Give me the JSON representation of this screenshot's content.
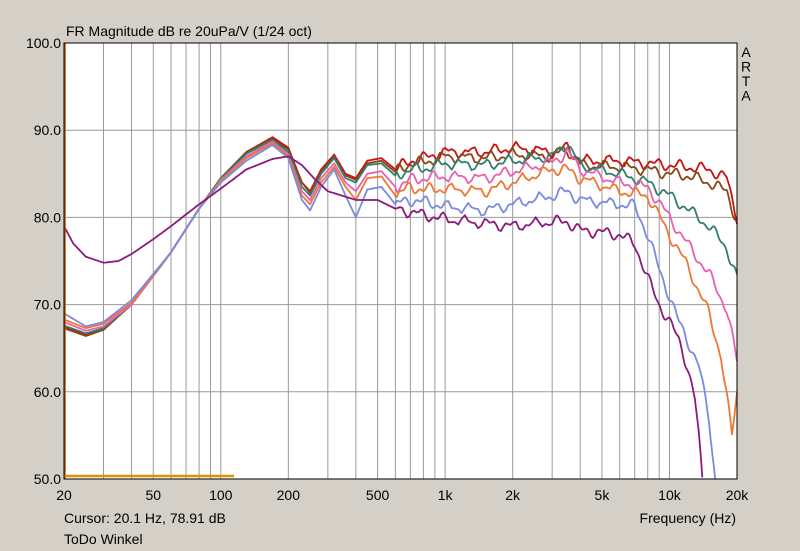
{
  "chart_data": {
    "type": "line",
    "title": "FR Magnitude dB re 20uPa/V (1/24 oct)",
    "side_label": "ARTA",
    "xlabel": "Frequency (Hz)",
    "x_scale": "log",
    "xlim": [
      20,
      20000
    ],
    "ylim": [
      50,
      100
    ],
    "x_ticks": [
      {
        "v": 20,
        "label": "20"
      },
      {
        "v": 50,
        "label": "50"
      },
      {
        "v": 100,
        "label": "100"
      },
      {
        "v": 200,
        "label": "200"
      },
      {
        "v": 500,
        "label": "500"
      },
      {
        "v": 1000,
        "label": "1k"
      },
      {
        "v": 2000,
        "label": "2k"
      },
      {
        "v": 5000,
        "label": "5k"
      },
      {
        "v": 10000,
        "label": "10k"
      },
      {
        "v": 20000,
        "label": "20k"
      }
    ],
    "y_ticks": [
      {
        "v": 100,
        "label": "100.0"
      },
      {
        "v": 90,
        "label": "90.0"
      },
      {
        "v": 80,
        "label": "80.0"
      },
      {
        "v": 70,
        "label": "70.0"
      },
      {
        "v": 60,
        "label": "60.0"
      },
      {
        "v": 50,
        "label": "50.0"
      }
    ],
    "grid": true,
    "colors": {
      "plot_bg": "#ffffff",
      "window_bg": "#d4d0c8",
      "grid": "#9a9a9a",
      "cursor": "#c05a00",
      "marker": "#e09000"
    },
    "series": [
      {
        "color": "#cc1111",
        "points": [
          [
            20,
            67.5
          ],
          [
            25,
            66.5
          ],
          [
            30,
            67.2
          ],
          [
            40,
            70
          ],
          [
            60,
            76
          ],
          [
            80,
            81
          ],
          [
            100,
            84.5
          ],
          [
            130,
            87.5
          ],
          [
            170,
            89.2
          ],
          [
            200,
            88
          ],
          [
            230,
            84
          ],
          [
            250,
            83
          ],
          [
            280,
            85.5
          ],
          [
            320,
            87.2
          ],
          [
            360,
            85
          ],
          [
            400,
            84.5
          ],
          [
            450,
            86.5
          ],
          [
            520,
            86.8
          ],
          [
            600,
            85.5
          ],
          [
            700,
            86.5
          ],
          [
            800,
            86.8
          ],
          [
            1000,
            87.5
          ],
          [
            1500,
            87.5
          ],
          [
            2000,
            88
          ],
          [
            3000,
            87.5
          ],
          [
            3500,
            88
          ],
          [
            4000,
            86.5
          ],
          [
            6000,
            86.5
          ],
          [
            8000,
            86.2
          ],
          [
            10000,
            86
          ],
          [
            12000,
            85.8
          ],
          [
            15000,
            85.5
          ],
          [
            18000,
            84.5
          ],
          [
            20000,
            80
          ]
        ]
      },
      {
        "color": "#8b4513",
        "points": [
          [
            20,
            67.3
          ],
          [
            25,
            66.4
          ],
          [
            30,
            67.1
          ],
          [
            40,
            70
          ],
          [
            60,
            76
          ],
          [
            80,
            81
          ],
          [
            100,
            84.5
          ],
          [
            130,
            87.5
          ],
          [
            170,
            89
          ],
          [
            200,
            87.8
          ],
          [
            230,
            84
          ],
          [
            250,
            82.8
          ],
          [
            280,
            85.3
          ],
          [
            320,
            87
          ],
          [
            360,
            84.8
          ],
          [
            400,
            84.3
          ],
          [
            450,
            86.2
          ],
          [
            520,
            86.5
          ],
          [
            600,
            85.2
          ],
          [
            700,
            86.2
          ],
          [
            800,
            86.3
          ],
          [
            1000,
            87
          ],
          [
            1500,
            86.8
          ],
          [
            2000,
            87.2
          ],
          [
            3000,
            87
          ],
          [
            3500,
            87.8
          ],
          [
            4000,
            86
          ],
          [
            6000,
            85.8
          ],
          [
            8000,
            85.5
          ],
          [
            10000,
            85
          ],
          [
            12000,
            84.8
          ],
          [
            15000,
            84
          ],
          [
            18000,
            83
          ],
          [
            20000,
            79.5
          ]
        ]
      },
      {
        "color": "#2f7f6f",
        "points": [
          [
            20,
            67.6
          ],
          [
            25,
            66.7
          ],
          [
            30,
            67.3
          ],
          [
            40,
            70
          ],
          [
            60,
            76
          ],
          [
            80,
            81
          ],
          [
            100,
            84.5
          ],
          [
            130,
            87.3
          ],
          [
            170,
            88.9
          ],
          [
            200,
            87.5
          ],
          [
            230,
            83.5
          ],
          [
            250,
            82.5
          ],
          [
            280,
            85
          ],
          [
            320,
            86.8
          ],
          [
            360,
            84.5
          ],
          [
            400,
            84
          ],
          [
            450,
            86
          ],
          [
            520,
            86.2
          ],
          [
            600,
            84.8
          ],
          [
            700,
            85.5
          ],
          [
            800,
            85.6
          ],
          [
            1000,
            86.2
          ],
          [
            1500,
            86
          ],
          [
            2000,
            86.5
          ],
          [
            3000,
            87
          ],
          [
            3500,
            88.5
          ],
          [
            4000,
            86
          ],
          [
            6000,
            85
          ],
          [
            8000,
            84
          ],
          [
            10000,
            82.5
          ],
          [
            12000,
            81
          ],
          [
            15000,
            79
          ],
          [
            18000,
            76.5
          ],
          [
            20000,
            73
          ]
        ]
      },
      {
        "color": "#e860b0",
        "points": [
          [
            20,
            68
          ],
          [
            25,
            67
          ],
          [
            30,
            67.5
          ],
          [
            40,
            70
          ],
          [
            60,
            76
          ],
          [
            80,
            81
          ],
          [
            100,
            84.3
          ],
          [
            130,
            87
          ],
          [
            170,
            88.7
          ],
          [
            200,
            87.2
          ],
          [
            230,
            83
          ],
          [
            250,
            82
          ],
          [
            280,
            84.5
          ],
          [
            320,
            86.2
          ],
          [
            360,
            84
          ],
          [
            400,
            83
          ],
          [
            450,
            85
          ],
          [
            520,
            85.3
          ],
          [
            600,
            83.5
          ],
          [
            700,
            84.3
          ],
          [
            800,
            84.5
          ],
          [
            1000,
            84.7
          ],
          [
            1500,
            84.5
          ],
          [
            2000,
            85.3
          ],
          [
            3000,
            86.3
          ],
          [
            3500,
            87.5
          ],
          [
            4000,
            85.5
          ],
          [
            6000,
            84
          ],
          [
            8000,
            83.5
          ],
          [
            10000,
            80
          ],
          [
            12000,
            77
          ],
          [
            15000,
            73.5
          ],
          [
            18000,
            69.5
          ],
          [
            20000,
            63.5
          ]
        ]
      },
      {
        "color": "#ee7733",
        "points": [
          [
            20,
            68.3
          ],
          [
            25,
            67.3
          ],
          [
            30,
            67.8
          ],
          [
            40,
            70.2
          ],
          [
            60,
            76
          ],
          [
            80,
            81
          ],
          [
            100,
            84.2
          ],
          [
            130,
            86.8
          ],
          [
            170,
            88.5
          ],
          [
            200,
            87
          ],
          [
            230,
            82.5
          ],
          [
            250,
            81.5
          ],
          [
            280,
            84
          ],
          [
            320,
            85.8
          ],
          [
            360,
            83.5
          ],
          [
            400,
            82
          ],
          [
            450,
            84.5
          ],
          [
            520,
            84.7
          ],
          [
            600,
            82.5
          ],
          [
            700,
            83.5
          ],
          [
            800,
            83.2
          ],
          [
            1000,
            83.3
          ],
          [
            1500,
            83
          ],
          [
            2000,
            84
          ],
          [
            3000,
            85.5
          ],
          [
            3500,
            85.5
          ],
          [
            4000,
            84.5
          ],
          [
            6000,
            83
          ],
          [
            8000,
            82.5
          ],
          [
            10000,
            78
          ],
          [
            12000,
            74.5
          ],
          [
            15000,
            69
          ],
          [
            17000,
            64
          ],
          [
            19000,
            55
          ],
          [
            20000,
            60
          ]
        ]
      },
      {
        "color": "#7a8ae0",
        "points": [
          [
            20,
            69
          ],
          [
            25,
            67.5
          ],
          [
            30,
            68
          ],
          [
            40,
            70.5
          ],
          [
            60,
            76
          ],
          [
            80,
            81
          ],
          [
            100,
            84
          ],
          [
            130,
            86.5
          ],
          [
            170,
            88.3
          ],
          [
            200,
            86.8
          ],
          [
            230,
            82
          ],
          [
            250,
            80.8
          ],
          [
            280,
            83.5
          ],
          [
            320,
            85.5
          ],
          [
            360,
            82.5
          ],
          [
            400,
            80
          ],
          [
            450,
            83.2
          ],
          [
            520,
            83.5
          ],
          [
            600,
            81.5
          ],
          [
            700,
            82
          ],
          [
            800,
            81.8
          ],
          [
            1000,
            81.3
          ],
          [
            1500,
            80.8
          ],
          [
            2000,
            81.5
          ],
          [
            3000,
            82.5
          ],
          [
            3500,
            83
          ],
          [
            4000,
            82
          ],
          [
            6000,
            81.5
          ],
          [
            7000,
            81.3
          ],
          [
            8000,
            78
          ],
          [
            9000,
            74
          ],
          [
            10000,
            71
          ],
          [
            11000,
            68
          ],
          [
            12000,
            66
          ],
          [
            13500,
            63
          ],
          [
            15000,
            57
          ],
          [
            16000,
            50
          ]
        ]
      },
      {
        "color": "#8b1a7a",
        "points": [
          [
            20,
            79
          ],
          [
            22,
            77
          ],
          [
            25,
            75.5
          ],
          [
            30,
            74.8
          ],
          [
            35,
            75
          ],
          [
            40,
            75.8
          ],
          [
            50,
            77.5
          ],
          [
            60,
            79
          ],
          [
            80,
            81.5
          ],
          [
            100,
            83.3
          ],
          [
            130,
            85.5
          ],
          [
            170,
            86.7
          ],
          [
            200,
            87
          ],
          [
            230,
            86
          ],
          [
            260,
            84.5
          ],
          [
            300,
            83
          ],
          [
            400,
            82
          ],
          [
            500,
            82
          ],
          [
            600,
            81
          ],
          [
            800,
            80.3
          ],
          [
            1000,
            79.8
          ],
          [
            1500,
            79.3
          ],
          [
            2000,
            79
          ],
          [
            3000,
            79.5
          ],
          [
            3500,
            79.5
          ],
          [
            4000,
            78.5
          ],
          [
            5000,
            78.3
          ],
          [
            6000,
            78
          ],
          [
            7000,
            77
          ],
          [
            8000,
            73
          ],
          [
            9000,
            70
          ],
          [
            10000,
            68
          ],
          [
            11000,
            66
          ],
          [
            12000,
            63
          ],
          [
            13000,
            59
          ],
          [
            13500,
            55
          ],
          [
            14000,
            50
          ]
        ]
      }
    ]
  },
  "status": {
    "cursor": "Cursor: 20.1 Hz, 78.91 dB",
    "name": "ToDo Winkel"
  }
}
